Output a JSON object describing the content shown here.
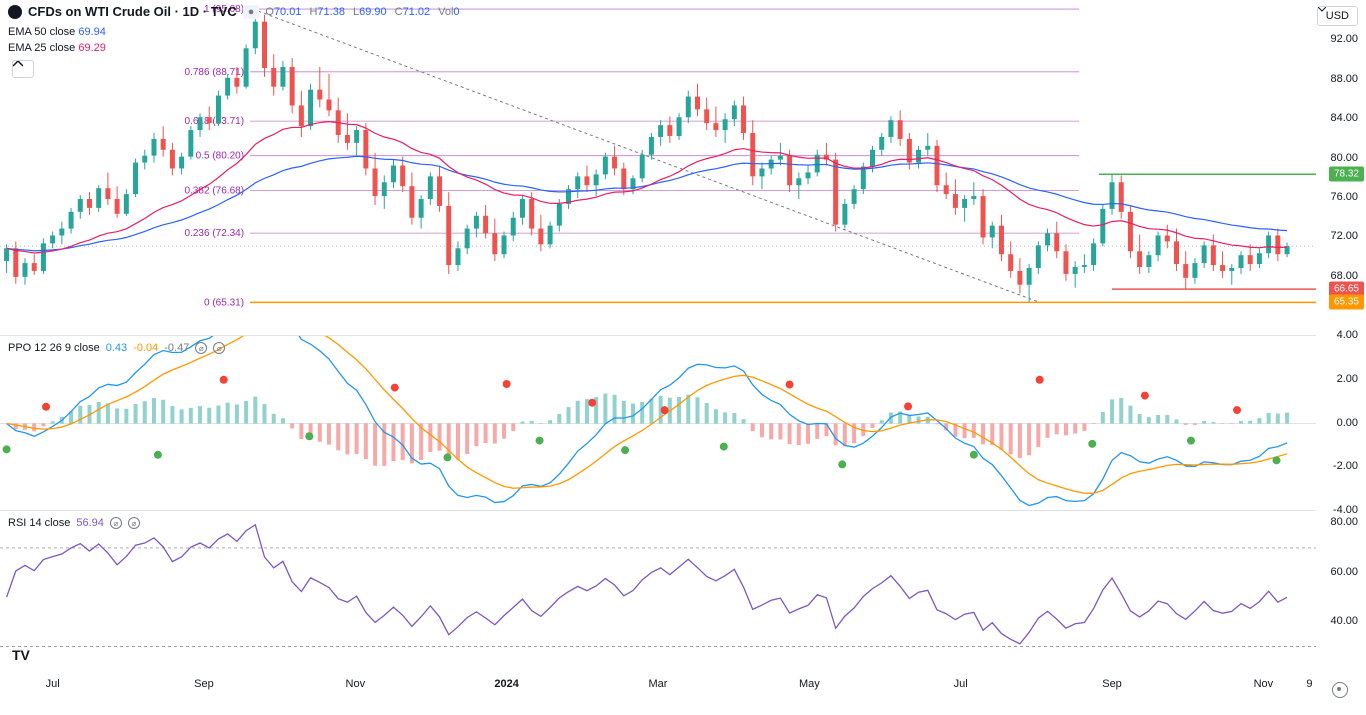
{
  "header": {
    "title": "CFDs on WTI Crude Oil · 1D · TVC",
    "ohlc": {
      "o_label": "O",
      "o": "70.01",
      "h_label": "H",
      "h": "71.38",
      "l_label": "L",
      "l": "69.90",
      "c_label": "C",
      "c": "71.02",
      "vol_label": "Vol",
      "vol": "0"
    },
    "currency": "USD"
  },
  "ema50": {
    "label": "EMA 50 close",
    "value": "69.94",
    "color": "#2962ff"
  },
  "ema25": {
    "label": "EMA 25 close",
    "value": "69.29",
    "color": "#e91e63"
  },
  "price_chart": {
    "type": "candlestick",
    "ylim": [
      62,
      96
    ],
    "yticks": [
      65.35,
      66.65,
      68,
      72,
      76,
      78.32,
      80,
      84,
      88,
      92
    ],
    "up_color": "#26a69a",
    "down_color": "#ef5350",
    "ema50_color": "#2962ff",
    "ema25_color": "#e91e63",
    "fib_color": "#9c27b0",
    "fib_levels": [
      {
        "ratio": "1",
        "price": "(95.08)",
        "y": 95.08
      },
      {
        "ratio": "0.786",
        "price": "(88.71)",
        "y": 88.71
      },
      {
        "ratio": "0.618",
        "price": "(83.71)",
        "y": 83.71
      },
      {
        "ratio": "0.5",
        "price": "(80.20)",
        "y": 80.2
      },
      {
        "ratio": "0.382",
        "price": "(76.68)",
        "y": 76.68
      },
      {
        "ratio": "0.236",
        "price": "(72.34)",
        "y": 72.34
      },
      {
        "ratio": "0",
        "price": "(65.31)",
        "y": 65.31
      }
    ],
    "price_tags": [
      {
        "value": "78.32",
        "color": "#4caf50",
        "y": 78.32
      },
      {
        "value": "66.65",
        "color": "#ef5350",
        "y": 66.65
      },
      {
        "value": "65.35",
        "color": "#ff9800",
        "y": 65.35
      }
    ],
    "horizontal_lines": [
      {
        "y": 78.32,
        "color": "#4caf50",
        "x_start": 0.835
      },
      {
        "y": 66.65,
        "color": "#ef5350",
        "x_start": 0.845
      },
      {
        "y": 65.31,
        "color": "#ff9800",
        "x_start": 0.19
      }
    ],
    "trend_line": {
      "x1": 0.192,
      "y1": 95.08,
      "x2": 0.79,
      "y2": 65.31,
      "color": "#787b86",
      "dash": "3,3"
    },
    "dotted_current": {
      "y": 71.02,
      "color": "#787b86"
    },
    "candles": [
      {
        "x": 0.005,
        "o": 69.5,
        "h": 71.2,
        "l": 68.3,
        "c": 70.8
      },
      {
        "x": 0.012,
        "o": 70.8,
        "h": 71.5,
        "l": 67.2,
        "c": 67.9
      },
      {
        "x": 0.019,
        "o": 67.9,
        "h": 69.8,
        "l": 67.1,
        "c": 69.3
      },
      {
        "x": 0.026,
        "o": 69.3,
        "h": 70.2,
        "l": 68.1,
        "c": 68.5
      },
      {
        "x": 0.033,
        "o": 68.5,
        "h": 71.8,
        "l": 68.2,
        "c": 71.3
      },
      {
        "x": 0.04,
        "o": 71.3,
        "h": 72.5,
        "l": 70.8,
        "c": 72.1
      },
      {
        "x": 0.047,
        "o": 72.1,
        "h": 73.5,
        "l": 71.2,
        "c": 72.8
      },
      {
        "x": 0.054,
        "o": 72.8,
        "h": 74.9,
        "l": 72.3,
        "c": 74.5
      },
      {
        "x": 0.061,
        "o": 74.5,
        "h": 76.2,
        "l": 73.8,
        "c": 75.8
      },
      {
        "x": 0.068,
        "o": 75.8,
        "h": 76.5,
        "l": 74.2,
        "c": 74.9
      },
      {
        "x": 0.075,
        "o": 74.9,
        "h": 77.2,
        "l": 74.5,
        "c": 76.9
      },
      {
        "x": 0.082,
        "o": 76.9,
        "h": 78.5,
        "l": 75.2,
        "c": 75.8
      },
      {
        "x": 0.089,
        "o": 75.8,
        "h": 77.1,
        "l": 73.9,
        "c": 74.3
      },
      {
        "x": 0.096,
        "o": 74.3,
        "h": 76.8,
        "l": 74.1,
        "c": 76.3
      },
      {
        "x": 0.103,
        "o": 76.3,
        "h": 79.9,
        "l": 76.0,
        "c": 79.5
      },
      {
        "x": 0.11,
        "o": 79.5,
        "h": 80.8,
        "l": 78.8,
        "c": 80.2
      },
      {
        "x": 0.117,
        "o": 80.2,
        "h": 82.5,
        "l": 79.5,
        "c": 81.9
      },
      {
        "x": 0.124,
        "o": 81.9,
        "h": 83.2,
        "l": 80.1,
        "c": 80.8
      },
      {
        "x": 0.131,
        "o": 80.8,
        "h": 81.5,
        "l": 78.2,
        "c": 78.9
      },
      {
        "x": 0.138,
        "o": 78.9,
        "h": 80.5,
        "l": 78.3,
        "c": 80.1
      },
      {
        "x": 0.145,
        "o": 80.1,
        "h": 83.2,
        "l": 79.8,
        "c": 82.8
      },
      {
        "x": 0.152,
        "o": 82.8,
        "h": 84.5,
        "l": 82.1,
        "c": 84.1
      },
      {
        "x": 0.159,
        "o": 84.1,
        "h": 85.2,
        "l": 82.8,
        "c": 83.5
      },
      {
        "x": 0.166,
        "o": 83.5,
        "h": 86.8,
        "l": 83.2,
        "c": 86.3
      },
      {
        "x": 0.173,
        "o": 86.3,
        "h": 88.5,
        "l": 85.9,
        "c": 88.1
      },
      {
        "x": 0.18,
        "o": 88.1,
        "h": 89.2,
        "l": 86.5,
        "c": 87.2
      },
      {
        "x": 0.187,
        "o": 87.2,
        "h": 91.5,
        "l": 87.0,
        "c": 91.1
      },
      {
        "x": 0.194,
        "o": 91.1,
        "h": 95.08,
        "l": 90.5,
        "c": 93.8
      },
      {
        "x": 0.201,
        "o": 93.8,
        "h": 94.5,
        "l": 88.2,
        "c": 89.1
      },
      {
        "x": 0.208,
        "o": 89.1,
        "h": 90.5,
        "l": 86.3,
        "c": 87.2
      },
      {
        "x": 0.215,
        "o": 87.2,
        "h": 89.8,
        "l": 86.8,
        "c": 89.2
      },
      {
        "x": 0.222,
        "o": 89.2,
        "h": 90.1,
        "l": 84.5,
        "c": 85.3
      },
      {
        "x": 0.229,
        "o": 85.3,
        "h": 86.8,
        "l": 82.1,
        "c": 83.2
      },
      {
        "x": 0.236,
        "o": 83.2,
        "h": 87.5,
        "l": 82.8,
        "c": 86.9
      },
      {
        "x": 0.243,
        "o": 86.9,
        "h": 89.2,
        "l": 85.1,
        "c": 85.9
      },
      {
        "x": 0.25,
        "o": 85.9,
        "h": 88.5,
        "l": 84.2,
        "c": 84.8
      },
      {
        "x": 0.257,
        "o": 84.8,
        "h": 86.1,
        "l": 81.5,
        "c": 82.3
      },
      {
        "x": 0.264,
        "o": 82.3,
        "h": 84.5,
        "l": 80.8,
        "c": 81.5
      },
      {
        "x": 0.271,
        "o": 81.5,
        "h": 83.2,
        "l": 80.1,
        "c": 82.8
      },
      {
        "x": 0.278,
        "o": 82.8,
        "h": 83.5,
        "l": 78.2,
        "c": 78.9
      },
      {
        "x": 0.285,
        "o": 78.9,
        "h": 80.5,
        "l": 75.2,
        "c": 76.1
      },
      {
        "x": 0.292,
        "o": 76.1,
        "h": 78.2,
        "l": 74.8,
        "c": 77.5
      },
      {
        "x": 0.299,
        "o": 77.5,
        "h": 79.8,
        "l": 76.9,
        "c": 79.2
      },
      {
        "x": 0.306,
        "o": 79.2,
        "h": 80.1,
        "l": 76.5,
        "c": 77.1
      },
      {
        "x": 0.313,
        "o": 77.1,
        "h": 78.5,
        "l": 73.2,
        "c": 73.9
      },
      {
        "x": 0.32,
        "o": 73.9,
        "h": 76.2,
        "l": 72.8,
        "c": 75.8
      },
      {
        "x": 0.327,
        "o": 75.8,
        "h": 78.5,
        "l": 75.2,
        "c": 78.1
      },
      {
        "x": 0.334,
        "o": 78.1,
        "h": 79.2,
        "l": 74.5,
        "c": 75.1
      },
      {
        "x": 0.341,
        "o": 75.1,
        "h": 76.5,
        "l": 68.2,
        "c": 69.1
      },
      {
        "x": 0.348,
        "o": 69.1,
        "h": 71.5,
        "l": 68.5,
        "c": 70.8
      },
      {
        "x": 0.355,
        "o": 70.8,
        "h": 73.2,
        "l": 70.2,
        "c": 72.8
      },
      {
        "x": 0.362,
        "o": 72.8,
        "h": 74.5,
        "l": 71.9,
        "c": 74.1
      },
      {
        "x": 0.369,
        "o": 74.1,
        "h": 75.2,
        "l": 71.8,
        "c": 72.3
      },
      {
        "x": 0.376,
        "o": 72.3,
        "h": 73.8,
        "l": 69.5,
        "c": 70.2
      },
      {
        "x": 0.383,
        "o": 70.2,
        "h": 72.5,
        "l": 69.8,
        "c": 72.1
      },
      {
        "x": 0.39,
        "o": 72.1,
        "h": 74.5,
        "l": 71.5,
        "c": 73.9
      },
      {
        "x": 0.397,
        "o": 73.9,
        "h": 76.2,
        "l": 73.2,
        "c": 75.8
      },
      {
        "x": 0.404,
        "o": 75.8,
        "h": 76.5,
        "l": 72.1,
        "c": 72.8
      },
      {
        "x": 0.411,
        "o": 72.8,
        "h": 74.2,
        "l": 70.5,
        "c": 71.2
      },
      {
        "x": 0.418,
        "o": 71.2,
        "h": 73.5,
        "l": 70.8,
        "c": 73.1
      },
      {
        "x": 0.425,
        "o": 73.1,
        "h": 75.8,
        "l": 72.5,
        "c": 75.3
      },
      {
        "x": 0.432,
        "o": 75.3,
        "h": 77.2,
        "l": 74.8,
        "c": 76.8
      },
      {
        "x": 0.439,
        "o": 76.8,
        "h": 78.5,
        "l": 75.9,
        "c": 78.1
      },
      {
        "x": 0.446,
        "o": 78.1,
        "h": 79.2,
        "l": 76.5,
        "c": 77.2
      },
      {
        "x": 0.453,
        "o": 77.2,
        "h": 78.8,
        "l": 76.1,
        "c": 78.3
      },
      {
        "x": 0.46,
        "o": 78.3,
        "h": 80.5,
        "l": 77.8,
        "c": 80.1
      },
      {
        "x": 0.467,
        "o": 80.1,
        "h": 81.2,
        "l": 78.2,
        "c": 78.9
      },
      {
        "x": 0.474,
        "o": 78.9,
        "h": 79.5,
        "l": 76.2,
        "c": 76.8
      },
      {
        "x": 0.481,
        "o": 76.8,
        "h": 78.2,
        "l": 76.3,
        "c": 77.9
      },
      {
        "x": 0.488,
        "o": 77.9,
        "h": 80.8,
        "l": 77.5,
        "c": 80.3
      },
      {
        "x": 0.495,
        "o": 80.3,
        "h": 82.5,
        "l": 79.8,
        "c": 82.1
      },
      {
        "x": 0.502,
        "o": 82.1,
        "h": 83.8,
        "l": 81.2,
        "c": 83.3
      },
      {
        "x": 0.509,
        "o": 83.3,
        "h": 84.2,
        "l": 81.5,
        "c": 82.2
      },
      {
        "x": 0.516,
        "o": 82.2,
        "h": 84.5,
        "l": 81.8,
        "c": 84.1
      },
      {
        "x": 0.523,
        "o": 84.1,
        "h": 86.8,
        "l": 83.5,
        "c": 86.2
      },
      {
        "x": 0.53,
        "o": 86.2,
        "h": 87.5,
        "l": 84.2,
        "c": 84.9
      },
      {
        "x": 0.537,
        "o": 84.9,
        "h": 86.1,
        "l": 82.8,
        "c": 83.5
      },
      {
        "x": 0.544,
        "o": 83.5,
        "h": 85.2,
        "l": 82.1,
        "c": 82.8
      },
      {
        "x": 0.551,
        "o": 82.8,
        "h": 84.5,
        "l": 81.5,
        "c": 83.9
      },
      {
        "x": 0.558,
        "o": 83.9,
        "h": 85.8,
        "l": 83.2,
        "c": 85.3
      },
      {
        "x": 0.565,
        "o": 85.3,
        "h": 86.2,
        "l": 81.8,
        "c": 82.5
      },
      {
        "x": 0.572,
        "o": 82.5,
        "h": 83.8,
        "l": 77.2,
        "c": 78.1
      },
      {
        "x": 0.579,
        "o": 78.1,
        "h": 79.5,
        "l": 76.8,
        "c": 78.9
      },
      {
        "x": 0.586,
        "o": 78.9,
        "h": 80.2,
        "l": 78.3,
        "c": 79.8
      },
      {
        "x": 0.593,
        "o": 79.8,
        "h": 81.5,
        "l": 79.2,
        "c": 80.2
      },
      {
        "x": 0.6,
        "o": 80.2,
        "h": 80.8,
        "l": 76.5,
        "c": 77.2
      },
      {
        "x": 0.607,
        "o": 77.2,
        "h": 78.5,
        "l": 75.8,
        "c": 77.9
      },
      {
        "x": 0.614,
        "o": 77.9,
        "h": 79.2,
        "l": 77.3,
        "c": 78.5
      },
      {
        "x": 0.621,
        "o": 78.5,
        "h": 80.8,
        "l": 78.1,
        "c": 80.3
      },
      {
        "x": 0.628,
        "o": 80.3,
        "h": 81.5,
        "l": 79.2,
        "c": 79.8
      },
      {
        "x": 0.635,
        "o": 79.8,
        "h": 80.5,
        "l": 72.5,
        "c": 73.2
      },
      {
        "x": 0.642,
        "o": 73.2,
        "h": 75.8,
        "l": 72.8,
        "c": 75.3
      },
      {
        "x": 0.649,
        "o": 75.3,
        "h": 77.2,
        "l": 74.8,
        "c": 76.8
      },
      {
        "x": 0.656,
        "o": 76.8,
        "h": 79.5,
        "l": 76.3,
        "c": 79.1
      },
      {
        "x": 0.663,
        "o": 79.1,
        "h": 81.2,
        "l": 78.5,
        "c": 80.8
      },
      {
        "x": 0.67,
        "o": 80.8,
        "h": 82.5,
        "l": 80.2,
        "c": 82.1
      },
      {
        "x": 0.677,
        "o": 82.1,
        "h": 84.2,
        "l": 81.5,
        "c": 83.8
      },
      {
        "x": 0.684,
        "o": 83.8,
        "h": 84.8,
        "l": 81.2,
        "c": 81.9
      },
      {
        "x": 0.691,
        "o": 81.9,
        "h": 82.5,
        "l": 78.8,
        "c": 79.5
      },
      {
        "x": 0.698,
        "o": 79.5,
        "h": 81.2,
        "l": 78.9,
        "c": 80.8
      },
      {
        "x": 0.705,
        "o": 80.8,
        "h": 82.5,
        "l": 80.2,
        "c": 81.2
      },
      {
        "x": 0.712,
        "o": 81.2,
        "h": 81.8,
        "l": 76.5,
        "c": 77.2
      },
      {
        "x": 0.719,
        "o": 77.2,
        "h": 78.5,
        "l": 75.8,
        "c": 76.3
      },
      {
        "x": 0.726,
        "o": 76.3,
        "h": 77.8,
        "l": 74.2,
        "c": 74.9
      },
      {
        "x": 0.733,
        "o": 74.9,
        "h": 76.2,
        "l": 73.5,
        "c": 75.8
      },
      {
        "x": 0.74,
        "o": 75.8,
        "h": 77.5,
        "l": 75.2,
        "c": 76.1
      },
      {
        "x": 0.747,
        "o": 76.1,
        "h": 76.8,
        "l": 71.2,
        "c": 71.9
      },
      {
        "x": 0.754,
        "o": 71.9,
        "h": 73.5,
        "l": 70.8,
        "c": 73.1
      },
      {
        "x": 0.761,
        "o": 73.1,
        "h": 74.2,
        "l": 69.5,
        "c": 70.2
      },
      {
        "x": 0.768,
        "o": 70.2,
        "h": 71.5,
        "l": 67.8,
        "c": 68.5
      },
      {
        "x": 0.775,
        "o": 68.5,
        "h": 69.8,
        "l": 66.2,
        "c": 67.1
      },
      {
        "x": 0.782,
        "o": 67.1,
        "h": 69.2,
        "l": 65.31,
        "c": 68.8
      },
      {
        "x": 0.789,
        "o": 68.8,
        "h": 71.5,
        "l": 68.2,
        "c": 71.1
      },
      {
        "x": 0.796,
        "o": 71.1,
        "h": 72.8,
        "l": 70.5,
        "c": 72.3
      },
      {
        "x": 0.803,
        "o": 72.3,
        "h": 73.5,
        "l": 69.8,
        "c": 70.5
      },
      {
        "x": 0.81,
        "o": 70.5,
        "h": 71.2,
        "l": 67.5,
        "c": 68.2
      },
      {
        "x": 0.817,
        "o": 68.2,
        "h": 69.5,
        "l": 66.8,
        "c": 68.9
      },
      {
        "x": 0.824,
        "o": 68.9,
        "h": 70.2,
        "l": 68.3,
        "c": 69.1
      },
      {
        "x": 0.831,
        "o": 69.1,
        "h": 71.8,
        "l": 68.5,
        "c": 71.3
      },
      {
        "x": 0.838,
        "o": 71.3,
        "h": 75.2,
        "l": 71.0,
        "c": 74.8
      },
      {
        "x": 0.845,
        "o": 74.8,
        "h": 78.32,
        "l": 74.2,
        "c": 77.5
      },
      {
        "x": 0.852,
        "o": 77.5,
        "h": 78.2,
        "l": 73.8,
        "c": 74.5
      },
      {
        "x": 0.859,
        "o": 74.5,
        "h": 75.2,
        "l": 69.8,
        "c": 70.5
      },
      {
        "x": 0.866,
        "o": 70.5,
        "h": 72.2,
        "l": 68.2,
        "c": 68.9
      },
      {
        "x": 0.873,
        "o": 68.9,
        "h": 70.5,
        "l": 68.3,
        "c": 70.1
      },
      {
        "x": 0.88,
        "o": 70.1,
        "h": 72.5,
        "l": 69.5,
        "c": 72.1
      },
      {
        "x": 0.887,
        "o": 72.1,
        "h": 73.2,
        "l": 70.8,
        "c": 71.5
      },
      {
        "x": 0.894,
        "o": 71.5,
        "h": 72.8,
        "l": 68.5,
        "c": 69.2
      },
      {
        "x": 0.901,
        "o": 69.2,
        "h": 70.5,
        "l": 66.65,
        "c": 67.8
      },
      {
        "x": 0.908,
        "o": 67.8,
        "h": 69.8,
        "l": 67.2,
        "c": 69.3
      },
      {
        "x": 0.915,
        "o": 69.3,
        "h": 71.5,
        "l": 68.8,
        "c": 71.1
      },
      {
        "x": 0.922,
        "o": 71.1,
        "h": 72.2,
        "l": 68.5,
        "c": 69.1
      },
      {
        "x": 0.929,
        "o": 69.1,
        "h": 70.5,
        "l": 67.8,
        "c": 68.5
      },
      {
        "x": 0.936,
        "o": 68.5,
        "h": 69.2,
        "l": 67.1,
        "c": 68.8
      },
      {
        "x": 0.943,
        "o": 68.8,
        "h": 70.5,
        "l": 68.2,
        "c": 70.1
      },
      {
        "x": 0.95,
        "o": 70.1,
        "h": 71.2,
        "l": 68.5,
        "c": 69.2
      },
      {
        "x": 0.957,
        "o": 69.2,
        "h": 70.8,
        "l": 68.8,
        "c": 70.3
      },
      {
        "x": 0.964,
        "o": 70.3,
        "h": 72.5,
        "l": 69.8,
        "c": 72.1
      },
      {
        "x": 0.971,
        "o": 72.1,
        "h": 72.8,
        "l": 69.5,
        "c": 70.2
      },
      {
        "x": 0.978,
        "o": 70.2,
        "h": 71.38,
        "l": 69.9,
        "c": 71.02
      }
    ]
  },
  "ppo": {
    "label": "PPO 12 26 9 close",
    "values": [
      "0.43",
      "-0.04",
      "-0.47"
    ],
    "colors": [
      "#2196f3",
      "#ff9800",
      "#787b86"
    ],
    "ylim": [
      -4,
      4
    ],
    "yticks": [
      -4,
      -2,
      0,
      2,
      4
    ],
    "line_color": "#2196f3",
    "signal_color": "#ff9800",
    "hist_up_color": "#26a69a",
    "hist_down_color": "#ef5350",
    "dot_buy_color": "#4caf50",
    "dot_sell_color": "#f44336"
  },
  "rsi": {
    "label": "RSI 14 close",
    "value": "56.94",
    "color": "#7e57c2",
    "ylim": [
      20,
      85
    ],
    "yticks": [
      40,
      60,
      80
    ],
    "bands": [
      30,
      70
    ],
    "band_color": "#787b86"
  },
  "time_axis": {
    "ticks": [
      {
        "x": 0.04,
        "label": "Jul"
      },
      {
        "x": 0.155,
        "label": "Sep"
      },
      {
        "x": 0.27,
        "label": "Nov"
      },
      {
        "x": 0.385,
        "label": "2024",
        "bold": true
      },
      {
        "x": 0.5,
        "label": "Mar"
      },
      {
        "x": 0.615,
        "label": "May"
      },
      {
        "x": 0.73,
        "label": "Jul"
      },
      {
        "x": 0.845,
        "label": "Sep"
      },
      {
        "x": 0.96,
        "label": "Nov"
      },
      {
        "x": 0.995,
        "label": "9"
      }
    ]
  },
  "tv_logo": "TV"
}
